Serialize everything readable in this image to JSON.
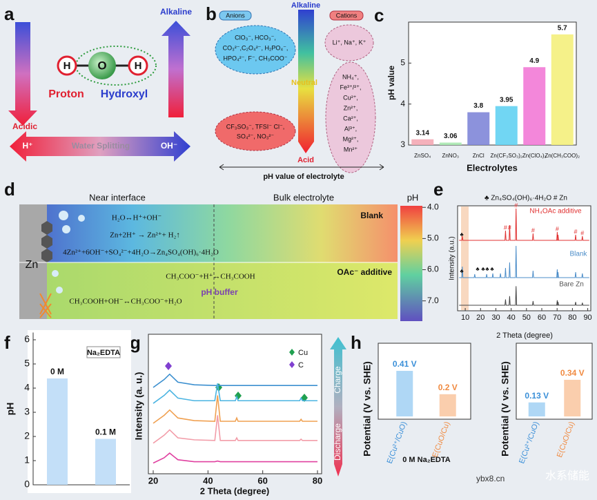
{
  "panel_labels": [
    "a",
    "b",
    "c",
    "d",
    "e",
    "f",
    "g",
    "h"
  ],
  "panel_a": {
    "alkaline": "Alkaline",
    "acidic": "Acidic",
    "atoms": [
      "H",
      "O",
      "H"
    ],
    "proton": "Proton",
    "hydroxyl": "Hydroxyl",
    "h_plus": "H⁺",
    "water_splitting": "Water Splitting",
    "oh_minus": "OH⁻"
  },
  "panel_b": {
    "anions": "Anions",
    "cations": "Cations",
    "alkaline": "Alkaline",
    "neutral": "Neutral",
    "acid": "Acid",
    "axis_label": "pH value of electrolyte",
    "anion_top": [
      "ClO₃⁻, HCO₃⁻,",
      "CO₃²⁻,C₂O₄²⁻, H₂PO₄⁻,",
      "HPO₄²⁻, F⁻, CH₃COO⁻"
    ],
    "anion_bottom": [
      "CF₃SO₃⁻, TFSI⁻ Cl⁻,",
      "SO₄²⁻, NO₃²⁻"
    ],
    "cation_top": "Li⁺, Na⁺, K⁺",
    "cation_bottom": [
      "NH₄⁺,",
      "Fe³⁺/²⁺,",
      "Cu²⁺,",
      "Zn²⁺,",
      "Ca²⁺,",
      "Al³⁺,",
      "Mg²⁺,",
      "Mn²⁺"
    ]
  },
  "panel_d": {
    "near": "Near interface",
    "bulk": "Bulk electrolyte",
    "zn": "Zn",
    "blank": "Blank",
    "oac": "OAc⁻ additive",
    "buffer": "pH buffer",
    "equations": [
      "H₂O↔H⁺+OH⁻",
      "Zn+2H⁺ → Zn²⁺+ H₂↑",
      "4Zn²⁺+6OH⁻+SO₄²⁻+4H₂O→Zn₄SO₄(OH)₆·4H₂O",
      "CH₃COO⁻+H⁺↔CH₃COOH",
      "CH₃COOH+OH⁻↔CH₃COO⁻+H₂O"
    ],
    "colorbar": {
      "label": "pH",
      "lim": [
        3.95,
        7.65
      ],
      "ticks": [
        {
          "value": 4,
          "label": "4.0"
        },
        {
          "value": 5,
          "label": "5.0"
        },
        {
          "value": 6,
          "label": "6.0"
        },
        {
          "value": 7,
          "label": "7.0"
        }
      ]
    }
  },
  "panel_e": {
    "legend": "♣ Zn₄SO₄(OH)₆·4H₂O  # Zn",
    "symbols": [
      "♣",
      "#"
    ],
    "traces": [
      "NH₄OAc additive",
      "Blank",
      "Bare Zn"
    ],
    "xlabel": "2 Theta (degree)",
    "ylabel": "Intensity (a.u.)",
    "xlim": [
      5,
      92
    ],
    "xticks": [
      10,
      20,
      30,
      40,
      50,
      60,
      70,
      80,
      90
    ]
  },
  "chart_data": [
    {
      "type": "bar",
      "categories": [
        "ZnSO₄",
        "ZnNO₃",
        "ZnCl",
        "Zn(CF₃SO₃)₂",
        "Zn(ClO₄)₂",
        "Zn(CH₃COO)₂"
      ],
      "values": [
        3.14,
        3.06,
        3.8,
        3.95,
        4.9,
        5.7
      ],
      "colors": [
        "#f4a8b4",
        "#a8e8b0",
        "#7f86d8",
        "#62d2f2",
        "#f27ad6",
        "#f4f07c"
      ],
      "ylim": [
        3,
        6
      ],
      "yticks": [
        3,
        4,
        5
      ],
      "ylabel": "pH value",
      "xlabel": "Electrolytes"
    },
    {
      "type": "bar",
      "categories": [
        "0 M",
        "0.1 M"
      ],
      "values": [
        4.4,
        1.9
      ],
      "colors": [
        "#bcdcf7",
        "#bcdcf7"
      ],
      "ylim": [
        0,
        6.3
      ],
      "yticks": [
        0,
        1,
        2,
        3,
        4,
        5,
        6
      ],
      "ylabel": "pH",
      "annotation": "Na₂EDTA"
    },
    {
      "type": "line",
      "xlim": [
        20,
        80
      ],
      "xticks": [
        20,
        40,
        60,
        80
      ],
      "ylim": [
        0,
        10
      ],
      "ylabel": "Intensity (a. u.)",
      "xlabel": "2 Theta (degree)",
      "legend": [
        "Cu",
        "C"
      ],
      "arrow": [
        "Charge",
        "Discharge"
      ],
      "x": [
        20,
        24,
        26,
        29,
        35,
        42.5,
        43.5,
        44.5,
        50,
        50.5,
        51,
        73.5,
        74,
        74.5,
        80
      ],
      "series": [
        {
          "color": "#3b8fcf",
          "values": [
            6.3,
            6.9,
            7.3,
            6.7,
            6.5,
            6.45,
            6.45,
            6.45,
            6.45,
            6.45,
            6.45,
            6.45,
            6.45,
            6.45,
            6.45
          ]
        },
        {
          "color": "#4ab4e2",
          "values": [
            5.1,
            5.7,
            6.1,
            5.5,
            5.3,
            5.3,
            6.6,
            5.3,
            5.3,
            5.6,
            5.3,
            5.3,
            5.5,
            5.3,
            5.3
          ]
        },
        {
          "color": "#f0a050",
          "values": [
            3.6,
            4.2,
            4.6,
            4.0,
            3.8,
            3.75,
            5.7,
            3.75,
            3.75,
            4.0,
            3.75,
            3.75,
            3.9,
            3.75,
            3.75
          ]
        },
        {
          "color": "#f29ca8",
          "values": [
            2.1,
            2.7,
            3.1,
            2.5,
            2.35,
            2.3,
            4.2,
            2.3,
            2.3,
            2.5,
            2.3,
            2.3,
            2.4,
            2.3,
            2.3
          ]
        },
        {
          "color": "#e040a0",
          "values": [
            0.6,
            1.0,
            1.35,
            0.85,
            0.7,
            0.7,
            0.75,
            0.7,
            0.7,
            0.7,
            0.7,
            0.7,
            0.7,
            0.7,
            0.7
          ]
        }
      ]
    },
    {
      "type": "bar",
      "categories": [
        "E(Cu²⁺/CuO)",
        "E(CuO/Cu)"
      ],
      "values": [
        0.41,
        0.2
      ],
      "value_labels": [
        "0.41 V",
        "0.2 V"
      ],
      "colors": [
        "#a6d3f4",
        "#f9c9a4"
      ],
      "label_colors": [
        "#3a8fd8",
        "#f08a40"
      ],
      "ylim": [
        0,
        0.64
      ],
      "ylabel": "Potential (V vs. SHE)",
      "annotation": "0 M Na₂EDTA"
    },
    {
      "type": "bar",
      "categories": [
        "E(Cu²⁺/CuO)",
        "E(CuO/Cu)"
      ],
      "values": [
        0.13,
        0.34
      ],
      "value_labels": [
        "0.13 V",
        "0.34 V"
      ],
      "colors": [
        "#a6d3f4",
        "#f9c9a4"
      ],
      "label_colors": [
        "#3a8fd8",
        "#f08a40"
      ],
      "ylim": [
        0,
        0.66
      ],
      "ylabel": "Potential (V vs. SHE)"
    }
  ],
  "watermark": [
    "ybx8.cn",
    "水系储能"
  ]
}
